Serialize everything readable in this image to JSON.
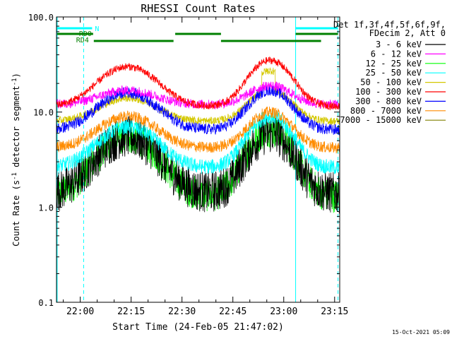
{
  "chart_data": {
    "type": "line",
    "title": "RHESSI Count Rates",
    "xlabel": "Start Time (24-Feb-05 21:47:02)",
    "ylabel_main": "Count Rate (s",
    "ylabel_sup1": "-1",
    "ylabel_mid": " detector segment",
    "ylabel_sup2": "-1",
    "ylabel_end": ")",
    "yscale": "log",
    "ylim": [
      0.1,
      100
    ],
    "xlim_minutes": [
      -7.0,
      76.5
    ],
    "y_ticks": [
      {
        "value": 0.1,
        "label": "0.1"
      },
      {
        "value": 1.0,
        "label": "1.0"
      },
      {
        "value": 10.0,
        "label": "10.0"
      },
      {
        "value": 100.0,
        "label": "100.0"
      }
    ],
    "x_ticks": [
      {
        "minutes": 0,
        "label": "22:00"
      },
      {
        "minutes": 15,
        "label": "22:15"
      },
      {
        "minutes": 30,
        "label": "22:30"
      },
      {
        "minutes": 45,
        "label": "22:45"
      },
      {
        "minutes": 60,
        "label": "23:00"
      },
      {
        "minutes": 75,
        "label": "23:15"
      }
    ],
    "legend_header": [
      "Det 1f,3f,4f,5f,6f,9f,",
      "FDecim 2, Att 0"
    ],
    "series": [
      {
        "name": "3 - 6 keV",
        "color": "#000000",
        "base": 1.4,
        "flare1": 5.5,
        "flare2": 6.0,
        "noise": 0.22
      },
      {
        "name": "6 - 12 keV",
        "color": "#ff00ff",
        "base": 12.0,
        "flare1": 17,
        "flare2": 19,
        "noise": 0.05
      },
      {
        "name": "12 - 25 keV",
        "color": "#00ff00",
        "base": 1.3,
        "flare1": 5.5,
        "flare2": 6.5,
        "noise": 0.18
      },
      {
        "name": "25 - 50 keV",
        "color": "#00ffff",
        "base": 2.6,
        "flare1": 7.0,
        "flare2": 9.0,
        "noise": 0.08
      },
      {
        "name": "50 - 100 keV",
        "color": "#d4c800",
        "base": 8.0,
        "flare1": 14,
        "flare2": 17,
        "noise": 0.04
      },
      {
        "name": "100 - 300 keV",
        "color": "#ff0000",
        "base": 11.5,
        "flare1": 30,
        "flare2": 35,
        "noise": 0.04
      },
      {
        "name": "300 - 800 keV",
        "color": "#0000ff",
        "base": 6.5,
        "flare1": 16,
        "flare2": 17,
        "noise": 0.06
      },
      {
        "name": "800 - 7000 keV",
        "color": "#ff8c00",
        "base": 4.2,
        "flare1": 9.0,
        "flare2": 10,
        "noise": 0.06
      },
      {
        "name": "7000 - 15000 keV",
        "color": "#808000",
        "base": 0,
        "flare1": 0,
        "flare2": 0,
        "noise": 0
      }
    ],
    "flags": [
      {
        "name": "N",
        "color": "#00ffff",
        "segments": [
          [
            -6.8,
            3.5
          ],
          [
            63.5,
            76
          ]
        ],
        "level": "top"
      },
      {
        "name": "RD0",
        "color": "#008000",
        "segments": [
          [
            -6.8,
            3.8
          ],
          [
            28.0,
            41.5
          ],
          [
            63.5,
            76
          ]
        ],
        "level": "mid"
      },
      {
        "name": "RD4",
        "color": "#008000",
        "segments": [
          [
            4.0,
            27.5
          ],
          [
            41.5,
            71.0
          ]
        ],
        "level": "low"
      }
    ],
    "vertical_markers": [
      {
        "minutes": -6.8,
        "color": "#00ffff",
        "style": "solid"
      },
      {
        "minutes": 1.0,
        "color": "#00ffff",
        "style": "dashed"
      },
      {
        "minutes": 63.5,
        "color": "#00ffff",
        "style": "solid"
      },
      {
        "minutes": 76.0,
        "color": "#00ffff",
        "style": "dashed"
      }
    ],
    "timestamp": "15-Oct-2021 05:09"
  }
}
